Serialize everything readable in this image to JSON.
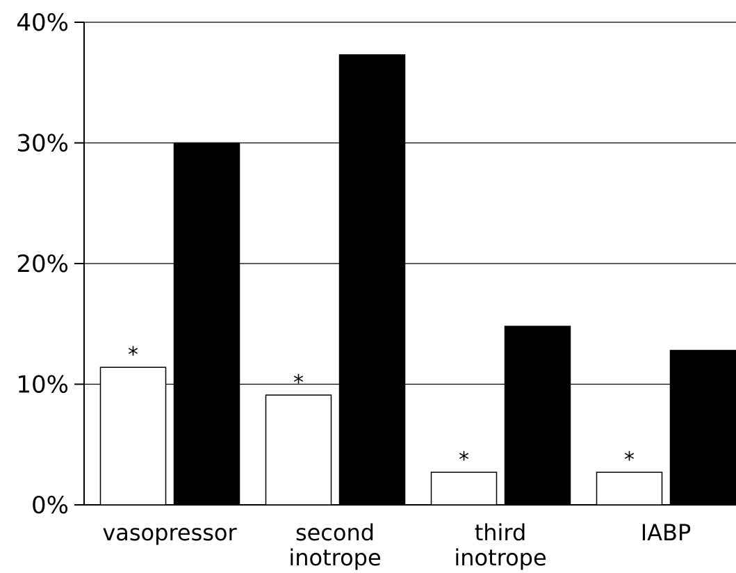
{
  "chart_data": {
    "type": "bar",
    "title": "",
    "xlabel": "",
    "ylabel": "",
    "ylim": [
      0,
      40
    ],
    "y_ticks": [
      {
        "value": 0,
        "label": "0%"
      },
      {
        "value": 10,
        "label": "10%"
      },
      {
        "value": 20,
        "label": "20%"
      },
      {
        "value": 30,
        "label": "30%"
      },
      {
        "value": 40,
        "label": "40%"
      }
    ],
    "grid": true,
    "legend": "none",
    "categories": [
      {
        "line1": "vasopressor",
        "line2": ""
      },
      {
        "line1": "second",
        "line2": "inotrope"
      },
      {
        "line1": "third",
        "line2": "inotrope"
      },
      {
        "line1": "IABP",
        "line2": ""
      }
    ],
    "series": [
      {
        "values": [
          11.4,
          9.1,
          2.7,
          2.7
        ],
        "color": "#ffffff",
        "stroke": "#000000",
        "markers": [
          "*",
          "*",
          "*",
          "*"
        ]
      },
      {
        "values": [
          30.0,
          37.3,
          14.8,
          12.8
        ],
        "color": "#000000",
        "stroke": "#000000",
        "markers": [
          "",
          "",
          "",
          ""
        ]
      }
    ]
  }
}
